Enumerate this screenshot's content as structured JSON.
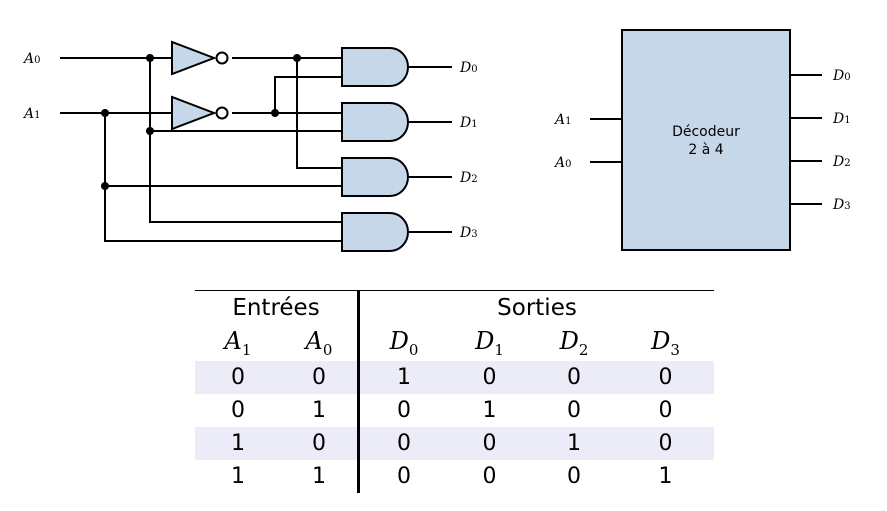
{
  "circuit": {
    "inputs": [
      {
        "letter": "A",
        "sub": "0"
      },
      {
        "letter": "A",
        "sub": "1"
      }
    ],
    "outputs": [
      {
        "letter": "D",
        "sub": "0"
      },
      {
        "letter": "D",
        "sub": "1"
      },
      {
        "letter": "D",
        "sub": "2"
      },
      {
        "letter": "D",
        "sub": "3"
      }
    ]
  },
  "block": {
    "name_line1": "Décodeur",
    "name_line2": "2 à 4",
    "inputs": [
      {
        "letter": "A",
        "sub": "1"
      },
      {
        "letter": "A",
        "sub": "0"
      }
    ],
    "outputs": [
      {
        "letter": "D",
        "sub": "0"
      },
      {
        "letter": "D",
        "sub": "1"
      },
      {
        "letter": "D",
        "sub": "2"
      },
      {
        "letter": "D",
        "sub": "3"
      }
    ],
    "fill_color": "#c7d7ea"
  },
  "truth_table": {
    "group_inputs": "Entrées",
    "group_outputs": "Sorties",
    "headers": [
      {
        "letter": "A",
        "sub": "1"
      },
      {
        "letter": "A",
        "sub": "0"
      },
      {
        "letter": "D",
        "sub": "0"
      },
      {
        "letter": "D",
        "sub": "1"
      },
      {
        "letter": "D",
        "sub": "2"
      },
      {
        "letter": "D",
        "sub": "3"
      }
    ],
    "rows": [
      [
        "0",
        "0",
        "1",
        "0",
        "0",
        "0"
      ],
      [
        "0",
        "1",
        "0",
        "1",
        "0",
        "0"
      ],
      [
        "1",
        "0",
        "0",
        "0",
        "1",
        "0"
      ],
      [
        "1",
        "1",
        "0",
        "0",
        "0",
        "1"
      ]
    ],
    "shade_color": "#ecebf8"
  }
}
